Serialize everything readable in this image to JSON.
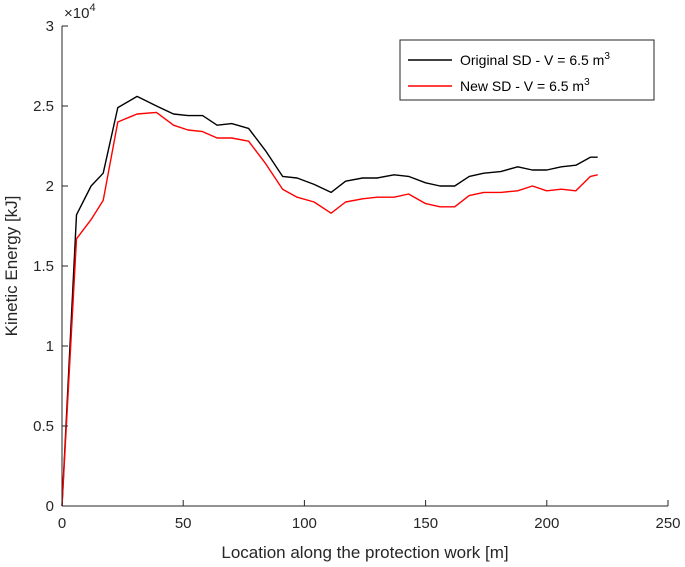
{
  "chart_data": {
    "type": "line",
    "xlabel": "Location along the protection work [m]",
    "ylabel": "Kinetic Energy [kJ]",
    "xlim": [
      0,
      250
    ],
    "ylim": [
      0,
      30000
    ],
    "x_ticks": [
      "0",
      "50",
      "100",
      "150",
      "200",
      "250"
    ],
    "y_ticks": [
      "0",
      "0.5",
      "1",
      "1.5",
      "2",
      "2.5",
      "3"
    ],
    "y_exponent_base": "×10",
    "y_exponent_power": "4",
    "grid": false,
    "legend_position": "top-right",
    "series": [
      {
        "name": "Original SD - V = 6.5 m",
        "name_superscript": "3",
        "color": "#000000",
        "x": [
          0,
          6,
          12,
          17,
          23,
          31,
          39,
          46,
          52,
          58,
          64,
          70,
          77,
          84,
          91,
          97,
          104,
          111,
          117,
          124,
          130,
          137,
          143,
          150,
          156,
          162,
          168,
          174,
          181,
          188,
          194,
          200,
          206,
          212,
          218,
          221
        ],
        "y": [
          0,
          18200,
          20000,
          20800,
          24900,
          25600,
          25000,
          24500,
          24400,
          24400,
          23800,
          23900,
          23600,
          22200,
          20600,
          20500,
          20100,
          19600,
          20300,
          20500,
          20500,
          20700,
          20600,
          20200,
          20000,
          20000,
          20600,
          20800,
          20900,
          21200,
          21000,
          21000,
          21200,
          21300,
          21800,
          21800
        ]
      },
      {
        "name": "New SD - V = 6.5 m",
        "name_superscript": "3",
        "color": "#ff0000",
        "x": [
          0,
          6,
          12,
          17,
          23,
          31,
          39,
          46,
          52,
          58,
          64,
          70,
          77,
          84,
          91,
          97,
          104,
          111,
          117,
          124,
          130,
          137,
          143,
          150,
          156,
          162,
          168,
          174,
          181,
          188,
          194,
          200,
          206,
          212,
          218,
          221
        ],
        "y": [
          0,
          16700,
          17900,
          19100,
          24000,
          24500,
          24600,
          23800,
          23500,
          23400,
          23000,
          23000,
          22800,
          21400,
          19800,
          19300,
          19000,
          18300,
          19000,
          19200,
          19300,
          19300,
          19500,
          18900,
          18700,
          18700,
          19400,
          19600,
          19600,
          19700,
          20000,
          19700,
          19800,
          19700,
          20600,
          20700
        ]
      }
    ]
  }
}
